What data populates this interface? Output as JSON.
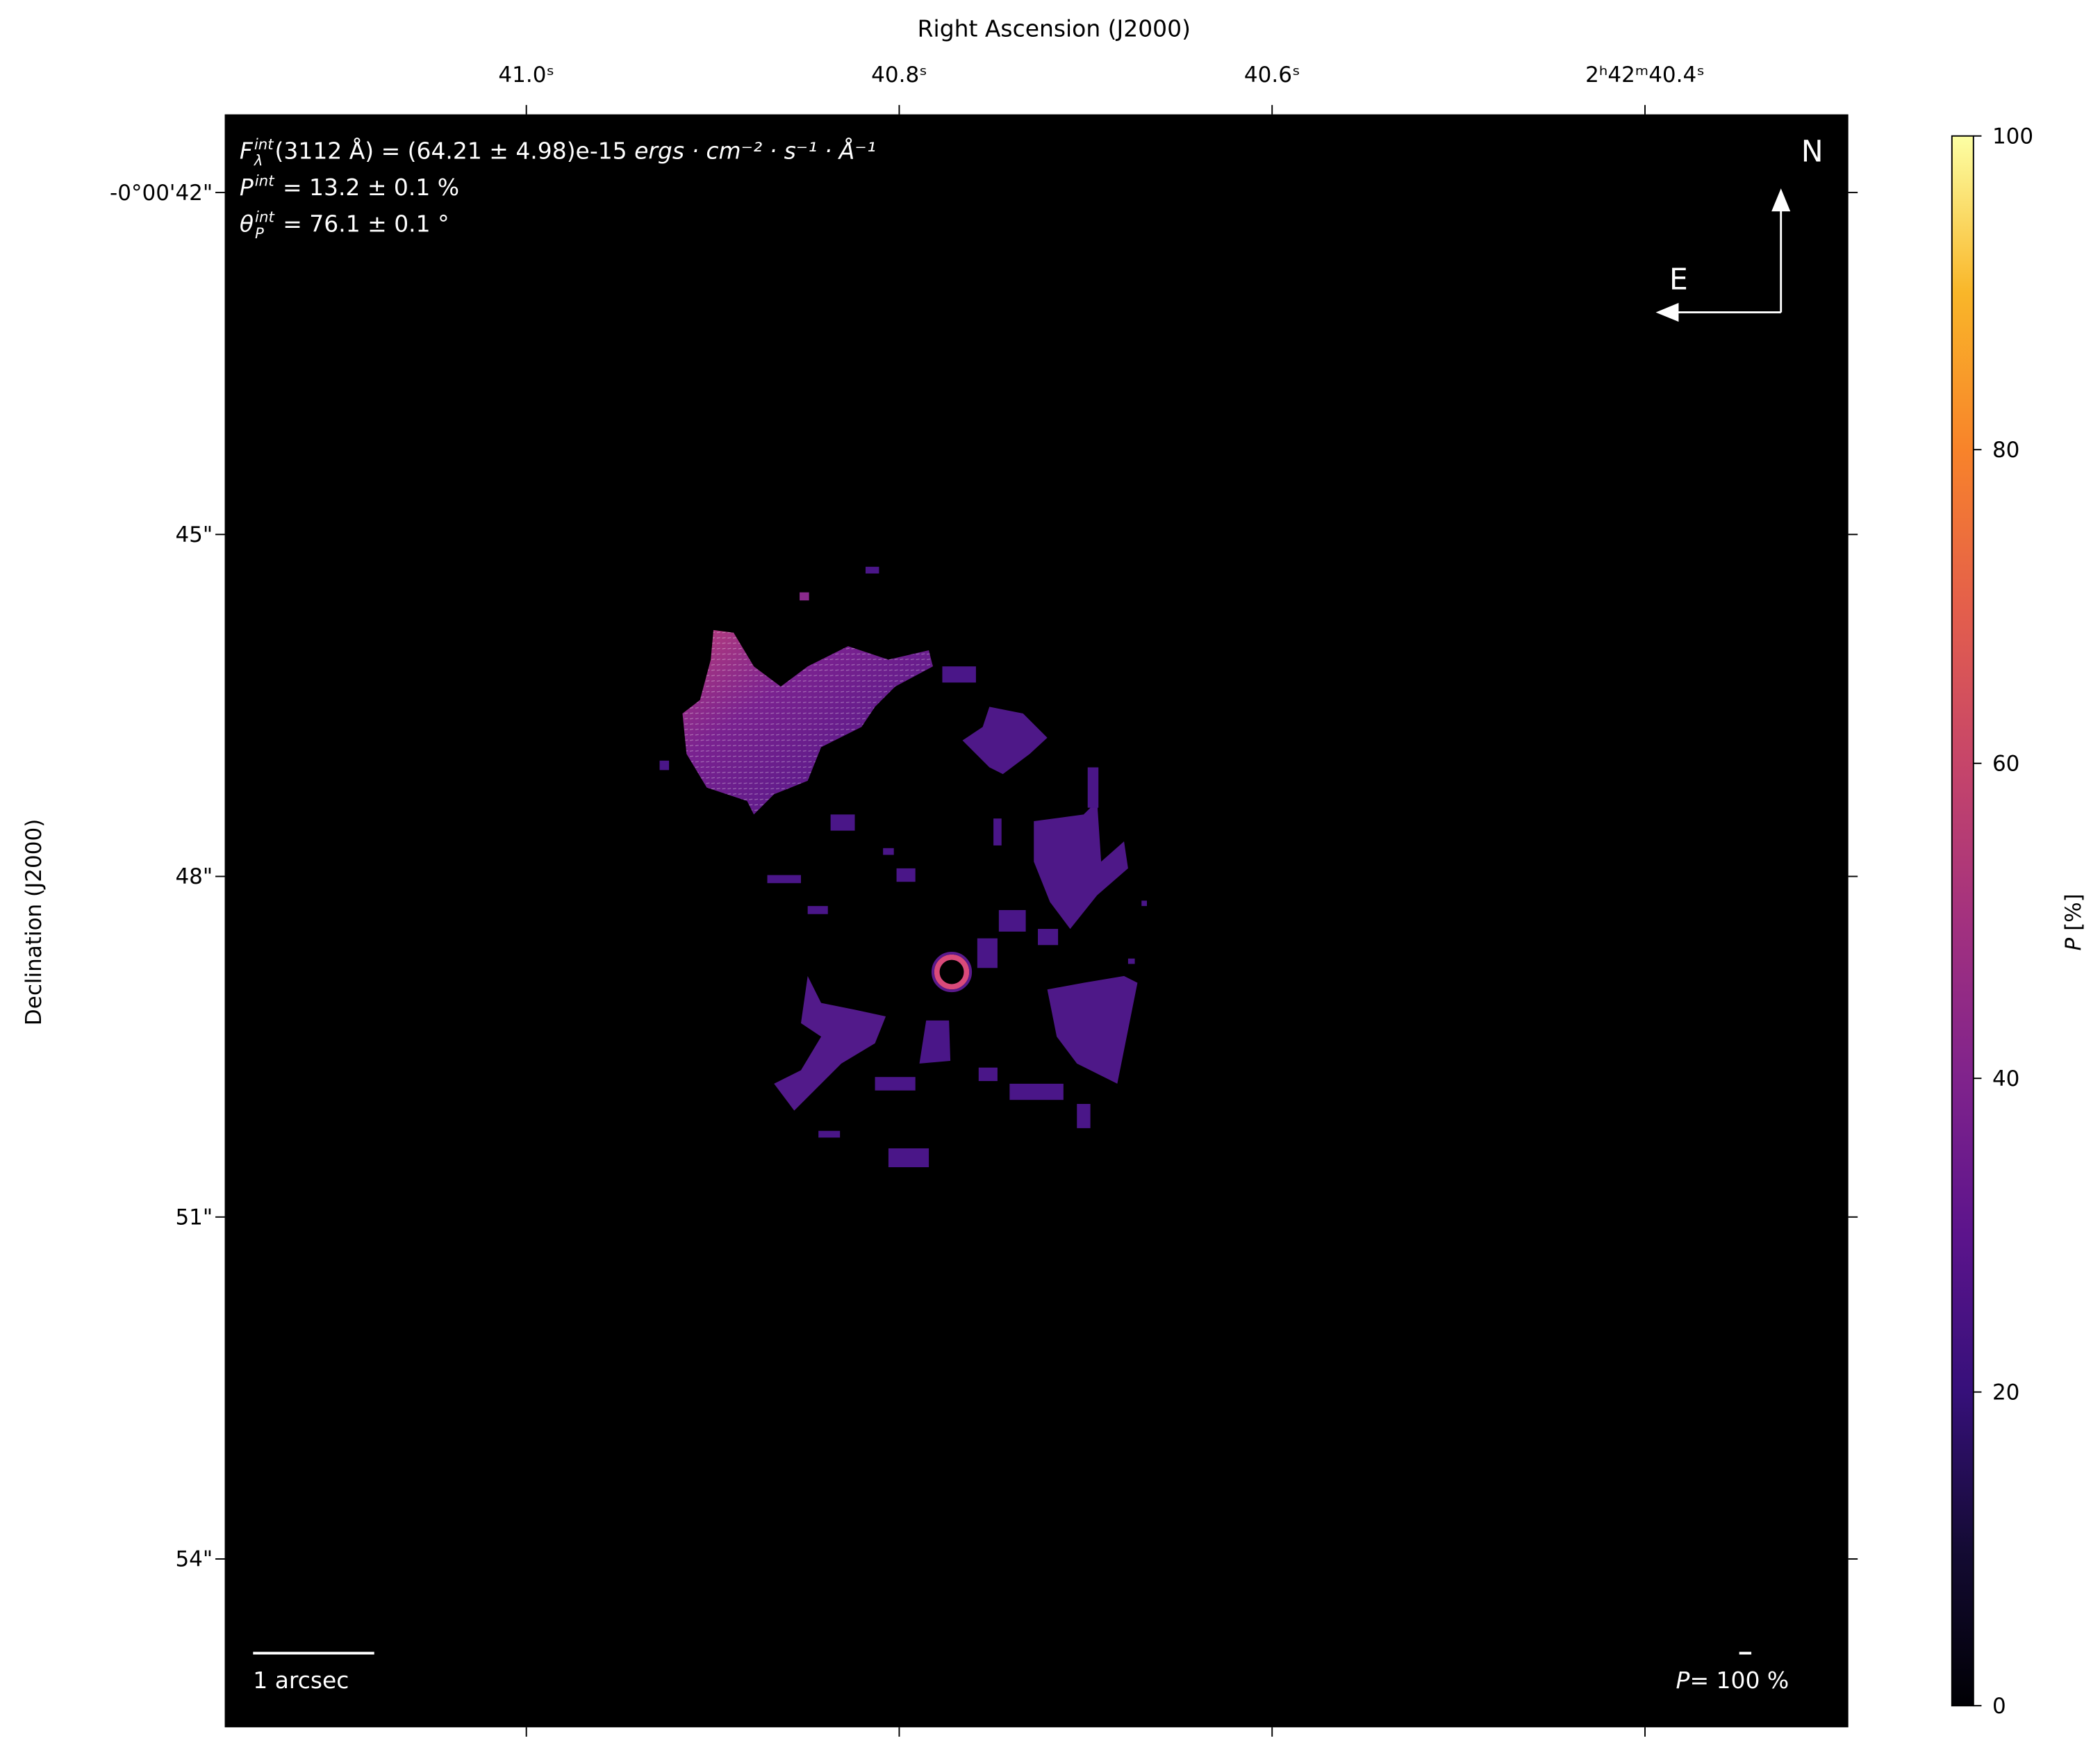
{
  "chart_data": {
    "type": "heatmap",
    "title": "",
    "xlabel": "Right Ascension (J2000)",
    "ylabel": "Declination (J2000)",
    "x_ticks": [
      "41.0ˢ",
      "40.8ˢ",
      "40.6ˢ",
      "2ʰ42ᵐ40.4ˢ"
    ],
    "y_ticks": [
      "-0°00'42\"",
      "45\"",
      "48\"",
      "51\"",
      "54\""
    ],
    "colorbar": {
      "label_symbol": "P",
      "label_unit": "[%]",
      "range": [
        0,
        100
      ],
      "ticks": [
        "0",
        "20",
        "40",
        "60",
        "80",
        "100"
      ],
      "colormap": "plasma"
    },
    "background_color": "#000000",
    "annotations": {
      "flux_symbol": "F",
      "flux_sub": "λ",
      "flux_sup": "int",
      "flux_value": "(3112 Å) = (64.21 ± 4.98)e-15 ",
      "flux_units": "ergs · cm⁻² · s⁻¹ · Å⁻¹",
      "p_symbol": "P",
      "p_sup": "int",
      "p_value": " = 13.2 ± 0.1 %",
      "theta_symbol": "θ",
      "theta_sub": "P",
      "theta_sup": "int",
      "theta_value": " = 76.1 ± 0.1 °"
    },
    "integrated": {
      "flux": 64.21,
      "flux_err": 4.98,
      "flux_exp": -15,
      "wavelength_A": 3112,
      "P_percent": 13.2,
      "P_err": 0.1,
      "theta_deg": 76.1,
      "theta_err": 0.1
    },
    "compass": {
      "north": "N",
      "east": "E"
    },
    "scale_bar_label": "1 arcsec",
    "vector_scale": {
      "symbol": "P",
      "value": "= 100 %"
    },
    "colors": {
      "low_region": "#4a1688",
      "high_region": "#b83e7c",
      "ring": "#e0507a"
    }
  }
}
